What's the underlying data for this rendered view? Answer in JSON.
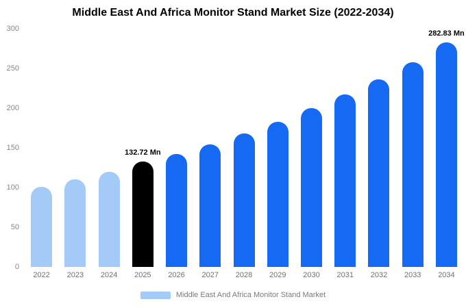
{
  "title": "Middle East And Africa Monitor Stand Market Size (2022-2034)",
  "colors": {
    "light_blue": "#a4cbf8",
    "blue": "#1569f2",
    "black": "#000000",
    "axis_text": "#868686"
  },
  "legend": {
    "label": "Middle East And Africa Monitor Stand Market",
    "swatch_color": "#a4cbf8"
  },
  "chart_data": {
    "type": "bar",
    "title": "Middle East And Africa Monitor Stand Market Size (2022-2034)",
    "categories": [
      "2022",
      "2023",
      "2024",
      "2025",
      "2026",
      "2027",
      "2028",
      "2029",
      "2030",
      "2031",
      "2032",
      "2033",
      "2034"
    ],
    "values": [
      101,
      110,
      120,
      132.72,
      142,
      154,
      168,
      183,
      200,
      217,
      236,
      258,
      282.83
    ],
    "bar_colors": [
      "light_blue",
      "light_blue",
      "light_blue",
      "black",
      "blue",
      "blue",
      "blue",
      "blue",
      "blue",
      "blue",
      "blue",
      "blue",
      "blue"
    ],
    "annotations": [
      {
        "category": "2025",
        "text": "132.72 Mn"
      },
      {
        "category": "2034",
        "text": "282.83 Mn"
      }
    ],
    "xlabel": "",
    "ylabel": "",
    "ylim": [
      0,
      300
    ],
    "yticks": [
      0,
      50,
      100,
      150,
      200,
      250,
      300
    ],
    "grid": false,
    "legend_position": "bottom"
  }
}
